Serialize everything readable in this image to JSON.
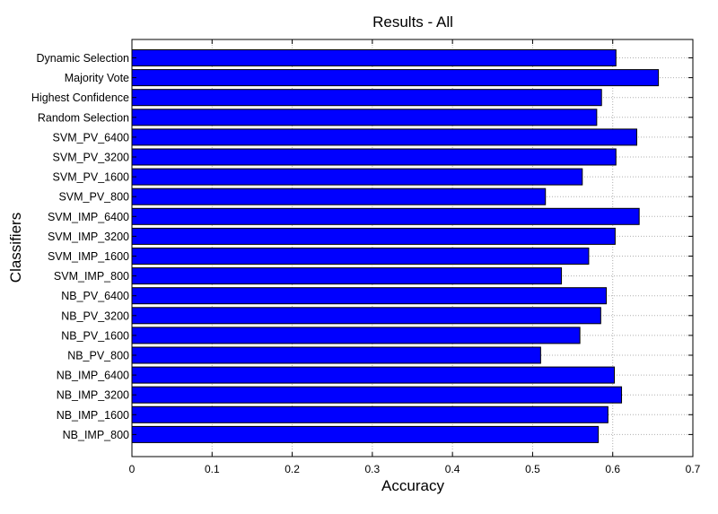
{
  "chart_data": {
    "type": "bar",
    "orientation": "horizontal",
    "title": "Results - All",
    "xlabel": "Accuracy",
    "ylabel": "Classifiers",
    "xlim": [
      0,
      0.7
    ],
    "xticks": [
      "0",
      "0.1",
      "0.2",
      "0.3",
      "0.4",
      "0.5",
      "0.6",
      "0.7"
    ],
    "grid": true,
    "bar_color": "#0000ff",
    "categories": [
      "Dynamic Selection",
      "Majority Vote",
      "Highest Confidence",
      "Random Selection",
      "SVM_PV_6400",
      "SVM_PV_3200",
      "SVM_PV_1600",
      "SVM_PV_800",
      "SVM_IMP_6400",
      "SVM_IMP_3200",
      "SVM_IMP_1600",
      "SVM_IMP_800",
      "NB_PV_6400",
      "NB_PV_3200",
      "NB_PV_1600",
      "NB_PV_800",
      "NB_IMP_6400",
      "NB_IMP_3200",
      "NB_IMP_1600",
      "NB_IMP_800"
    ],
    "values": [
      0.604,
      0.657,
      0.586,
      0.58,
      0.63,
      0.604,
      0.562,
      0.516,
      0.633,
      0.603,
      0.57,
      0.536,
      0.592,
      0.585,
      0.559,
      0.51,
      0.602,
      0.611,
      0.594,
      0.582
    ]
  }
}
